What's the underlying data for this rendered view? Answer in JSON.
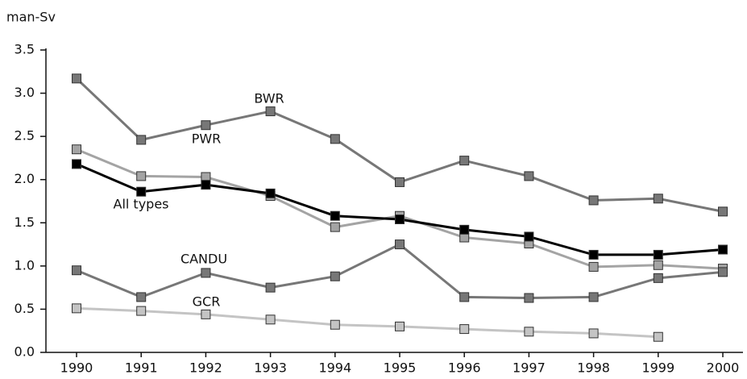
{
  "chart_data": {
    "type": "line",
    "y_label": "man-Sv",
    "categories": [
      "1990",
      "1991",
      "1992",
      "1993",
      "1994",
      "1995",
      "1996",
      "1997",
      "1998",
      "1999",
      "2000"
    ],
    "ylim": [
      0,
      3.5
    ],
    "yticks": [
      {
        "value": 0,
        "label": "0.0"
      },
      0.5,
      {
        "value": 1,
        "label": "1.0"
      },
      1.5,
      {
        "value": 2,
        "label": "2.0"
      },
      2.5,
      {
        "value": 3,
        "label": "3.0"
      },
      3.5
    ],
    "grid": false,
    "series": [
      {
        "name": "BWR",
        "color": "#777777",
        "values": [
          3.17,
          2.46,
          2.63,
          2.79,
          2.47,
          1.97,
          2.22,
          2.04,
          1.76,
          1.78,
          1.63
        ]
      },
      {
        "name": "PWR",
        "color": "#a4a4a4",
        "values": [
          2.35,
          2.04,
          2.03,
          1.81,
          1.45,
          1.58,
          1.33,
          1.26,
          0.99,
          1.01,
          0.97
        ]
      },
      {
        "name": "All types",
        "color": "#000000",
        "values": [
          2.18,
          1.86,
          1.94,
          1.84,
          1.58,
          1.54,
          1.42,
          1.34,
          1.13,
          1.13,
          1.19
        ]
      },
      {
        "name": "CANDU",
        "color": "#777777",
        "values": [
          0.95,
          0.64,
          0.92,
          0.75,
          0.88,
          1.25,
          0.64,
          0.63,
          0.64,
          0.86,
          0.93
        ]
      },
      {
        "name": "GCR",
        "color": "#c4c4c4",
        "values": [
          0.51,
          0.48,
          0.44,
          0.38,
          0.32,
          0.3,
          0.27,
          0.24,
          0.22,
          0.18,
          null
        ]
      }
    ]
  }
}
